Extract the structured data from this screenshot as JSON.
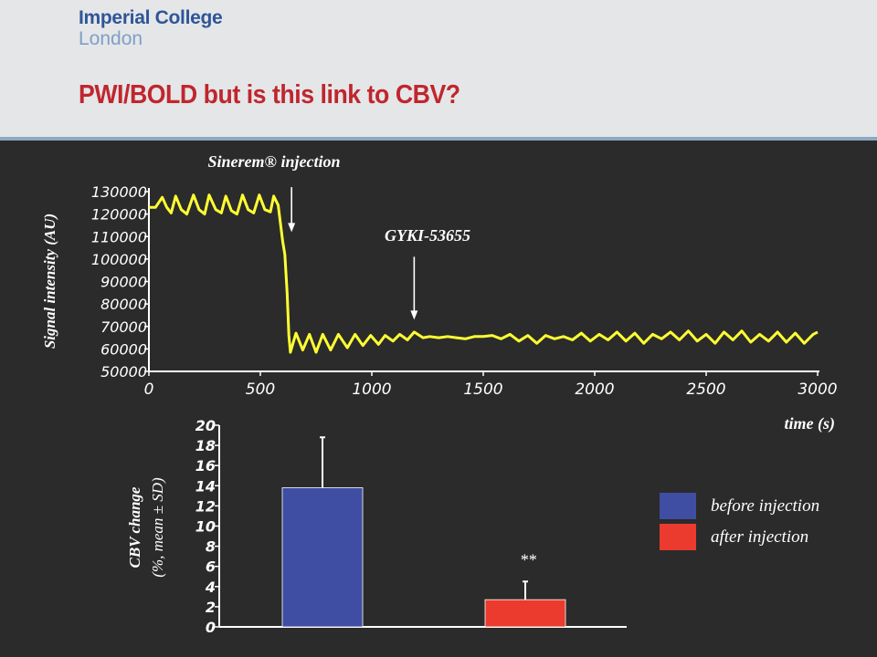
{
  "header": {
    "logo_line1": "Imperial College",
    "logo_line2": "London",
    "title": "PWI/BOLD but is this link to CBV?"
  },
  "colors": {
    "background": "#2b2b2b",
    "header_bg": "#e4e6e8",
    "title": "#c0262d",
    "logo": "#2f5597",
    "trace": "#ffff33",
    "bar_before": "#3f4ea3",
    "bar_after": "#ea3b2e"
  },
  "chart_data": [
    {
      "type": "line",
      "ylabel": "Signal intensity (AU)",
      "xlabel": "time (s)",
      "xlim": [
        0,
        3000
      ],
      "ylim": [
        50000,
        130000
      ],
      "x_ticks": [
        "0",
        "500",
        "1000",
        "1500",
        "2000",
        "2500",
        "3000"
      ],
      "y_ticks": [
        "130000",
        "120000",
        "110000",
        "100000",
        "90000",
        "80000",
        "70000",
        "60000",
        "50000"
      ],
      "annotations": [
        {
          "text": "Sinerem® injection",
          "x": 640,
          "arrow_from": 132000,
          "arrow_to": 112000
        },
        {
          "text": "GYKI-53655",
          "x": 1190,
          "arrow_from": 101000,
          "arrow_to": 73000
        }
      ],
      "series": [
        {
          "x": [
            0,
            30,
            60,
            80,
            100,
            120,
            145,
            170,
            200,
            225,
            250,
            270,
            300,
            325,
            345,
            370,
            395,
            420,
            445,
            470,
            495,
            520,
            545,
            560,
            580,
            600,
            610,
            620,
            628,
            635,
            645,
            660,
            690,
            720,
            750,
            780,
            815,
            850,
            890,
            925,
            960,
            995,
            1030,
            1060,
            1095,
            1125,
            1160,
            1190,
            1230,
            1260,
            1300,
            1340,
            1380,
            1420,
            1460,
            1500,
            1540,
            1580,
            1620,
            1660,
            1700,
            1740,
            1780,
            1820,
            1860,
            1900,
            1940,
            1980,
            2020,
            2060,
            2100,
            2140,
            2180,
            2220,
            2260,
            2300,
            2340,
            2380,
            2420,
            2460,
            2500,
            2540,
            2580,
            2620,
            2660,
            2700,
            2740,
            2780,
            2820,
            2860,
            2900,
            2940,
            2980,
            3000
          ],
          "y": [
            123000,
            123000,
            127500,
            123000,
            120500,
            128000,
            122000,
            120000,
            128500,
            122000,
            120000,
            128500,
            122000,
            120500,
            128000,
            121500,
            120000,
            128500,
            122000,
            120500,
            128500,
            122000,
            121000,
            128000,
            124000,
            108000,
            102000,
            85000,
            66000,
            58500,
            62000,
            67000,
            59500,
            66500,
            58500,
            66500,
            59500,
            66500,
            60500,
            66500,
            61500,
            66000,
            62000,
            66000,
            63500,
            66500,
            64000,
            67500,
            65000,
            65500,
            65000,
            65500,
            65000,
            64500,
            65500,
            65500,
            66000,
            64500,
            66500,
            63500,
            66000,
            62500,
            66000,
            64500,
            65500,
            64000,
            67000,
            63500,
            66500,
            64000,
            67500,
            63500,
            67000,
            62500,
            66500,
            64500,
            67500,
            64000,
            68000,
            63500,
            66500,
            62500,
            67500,
            64000,
            68000,
            63000,
            66500,
            63500,
            67500,
            63000,
            67000,
            62500,
            66500,
            67500
          ]
        }
      ]
    },
    {
      "type": "bar",
      "ylabel": "CBV change",
      "ylabel2": "(%, mean ± SD)",
      "ylim": [
        0,
        20
      ],
      "y_ticks": [
        "20",
        "18",
        "16",
        "14",
        "12",
        "10",
        "8",
        "6",
        "4",
        "2",
        "0"
      ],
      "categories": [
        "before injection",
        "after injection"
      ],
      "values": [
        13.8,
        2.7
      ],
      "errors": [
        5.0,
        1.8
      ],
      "significance": [
        "",
        "**"
      ],
      "legend": [
        {
          "label": "before injection",
          "color": "#3f4ea3"
        },
        {
          "label": "after injection",
          "color": "#ea3b2e"
        }
      ]
    }
  ]
}
